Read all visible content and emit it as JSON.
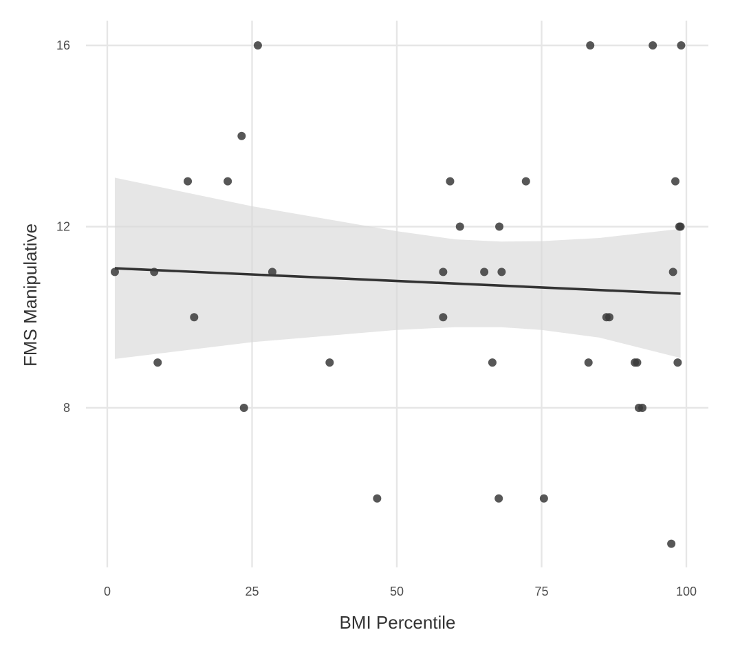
{
  "chart_data": {
    "type": "scatter",
    "title": "",
    "xlabel": "BMI Percentile",
    "ylabel": "FMS Manipulative",
    "xlim": [
      0,
      100
    ],
    "ylim": [
      5,
      16
    ],
    "x_ticks": [
      "0",
      "25",
      "50",
      "75",
      "100"
    ],
    "y_ticks": [
      "8",
      "12",
      "16"
    ],
    "grid": true,
    "legend": "none",
    "colors": {
      "points": "#3a3a3a",
      "trend_line": "#333333",
      "confidence_band": "#d9d9d9",
      "grid": "#e6e6e6"
    },
    "points": [
      {
        "x": 1.3,
        "y": 11
      },
      {
        "x": 8.1,
        "y": 11
      },
      {
        "x": 8.7,
        "y": 9
      },
      {
        "x": 13.9,
        "y": 13
      },
      {
        "x": 15.0,
        "y": 10
      },
      {
        "x": 20.8,
        "y": 13
      },
      {
        "x": 23.2,
        "y": 14
      },
      {
        "x": 23.6,
        "y": 8
      },
      {
        "x": 26.0,
        "y": 16
      },
      {
        "x": 28.5,
        "y": 11
      },
      {
        "x": 38.4,
        "y": 9
      },
      {
        "x": 46.6,
        "y": 6
      },
      {
        "x": 58.0,
        "y": 11
      },
      {
        "x": 58.0,
        "y": 10
      },
      {
        "x": 59.2,
        "y": 13
      },
      {
        "x": 60.9,
        "y": 12
      },
      {
        "x": 65.1,
        "y": 11
      },
      {
        "x": 66.5,
        "y": 9
      },
      {
        "x": 67.6,
        "y": 6
      },
      {
        "x": 67.7,
        "y": 12
      },
      {
        "x": 68.1,
        "y": 11
      },
      {
        "x": 72.3,
        "y": 13
      },
      {
        "x": 75.4,
        "y": 6
      },
      {
        "x": 83.1,
        "y": 9
      },
      {
        "x": 83.4,
        "y": 16
      },
      {
        "x": 86.2,
        "y": 10
      },
      {
        "x": 86.7,
        "y": 10
      },
      {
        "x": 91.1,
        "y": 9
      },
      {
        "x": 91.5,
        "y": 9
      },
      {
        "x": 91.8,
        "y": 8
      },
      {
        "x": 92.4,
        "y": 8
      },
      {
        "x": 94.2,
        "y": 16
      },
      {
        "x": 97.4,
        "y": 5
      },
      {
        "x": 97.7,
        "y": 11
      },
      {
        "x": 98.1,
        "y": 13
      },
      {
        "x": 98.5,
        "y": 9
      },
      {
        "x": 98.8,
        "y": 12
      },
      {
        "x": 99.0,
        "y": 12
      },
      {
        "x": 99.1,
        "y": 16
      }
    ],
    "trend_line": {
      "x": [
        1.3,
        99.0
      ],
      "y": [
        11.08,
        10.52
      ]
    },
    "confidence_band": {
      "x": [
        1.3,
        25,
        50,
        60,
        68,
        75,
        85,
        99.0
      ],
      "upper": [
        13.08,
        12.45,
        11.9,
        11.72,
        11.67,
        11.68,
        11.75,
        11.95
      ],
      "lower": [
        9.08,
        9.45,
        9.72,
        9.78,
        9.78,
        9.72,
        9.55,
        9.1
      ]
    }
  }
}
